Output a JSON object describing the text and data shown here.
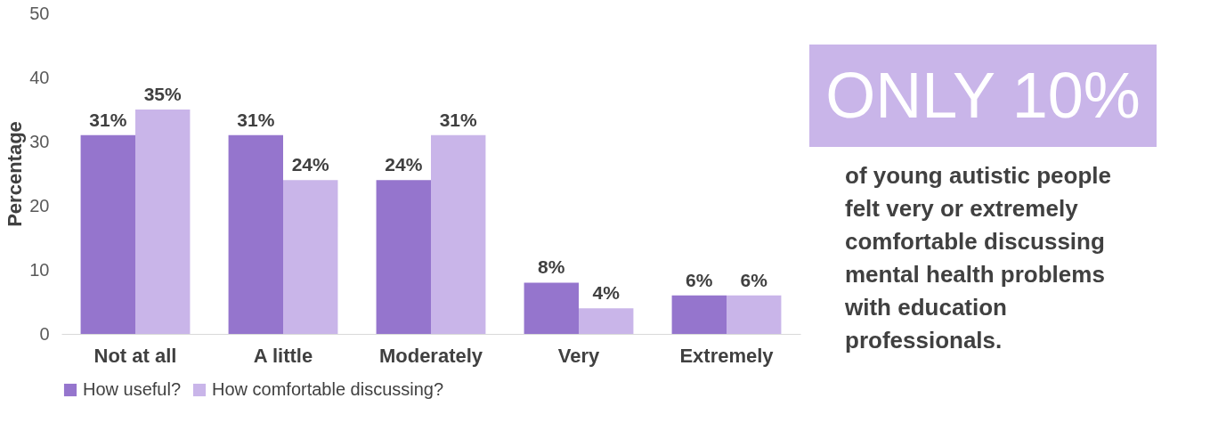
{
  "chart_data": {
    "type": "bar",
    "ylabel": "Percentage",
    "categories": [
      "Not at all",
      "A little",
      "Moderately",
      "Very",
      "Extremely"
    ],
    "series": [
      {
        "name": "How useful?",
        "color": "#9575cd",
        "values": [
          31,
          31,
          24,
          8,
          6
        ],
        "value_labels": [
          "31%",
          "31%",
          "24%",
          "8%",
          "6%"
        ]
      },
      {
        "name": "How comfortable discussing?",
        "color": "#c9b5e9",
        "values": [
          35,
          24,
          31,
          4,
          6
        ],
        "value_labels": [
          "35%",
          "24%",
          "31%",
          "4%",
          "6%"
        ]
      }
    ],
    "ylim": [
      0,
      50
    ],
    "yticks": [
      0,
      10,
      20,
      30,
      40,
      50
    ],
    "grid": false,
    "legend": "bottom",
    "annotations": [
      "ONLY 10%",
      "of young autistic people\nfelt very or extremely\ncomfortable discussing\nmental health problems\nwith education\nprofessionals."
    ]
  }
}
